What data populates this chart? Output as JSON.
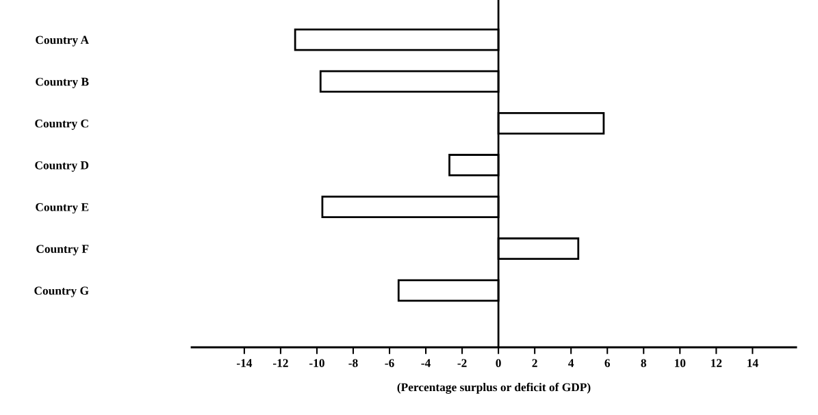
{
  "chart_data": {
    "type": "bar",
    "orientation": "horizontal",
    "categories": [
      "Country A",
      "Country B",
      "Country C",
      "Country D",
      "Country E",
      "Country F",
      "Country G"
    ],
    "values": [
      -11.2,
      -9.8,
      5.8,
      -2.7,
      -9.7,
      4.4,
      -5.5
    ],
    "color": "#ffffff",
    "xlabel": "(Percentage surplus or deficit of GDP)",
    "xlim": [
      -16.9,
      16.4
    ],
    "xticks": [
      -14,
      -12,
      -10,
      -8,
      -6,
      -4,
      -2,
      0,
      2,
      4,
      6,
      8,
      10,
      12,
      14
    ],
    "ref_lines": [
      {
        "axis": "x",
        "value": 0,
        "color": "#000000"
      }
    ],
    "grid": false,
    "legend": false
  }
}
